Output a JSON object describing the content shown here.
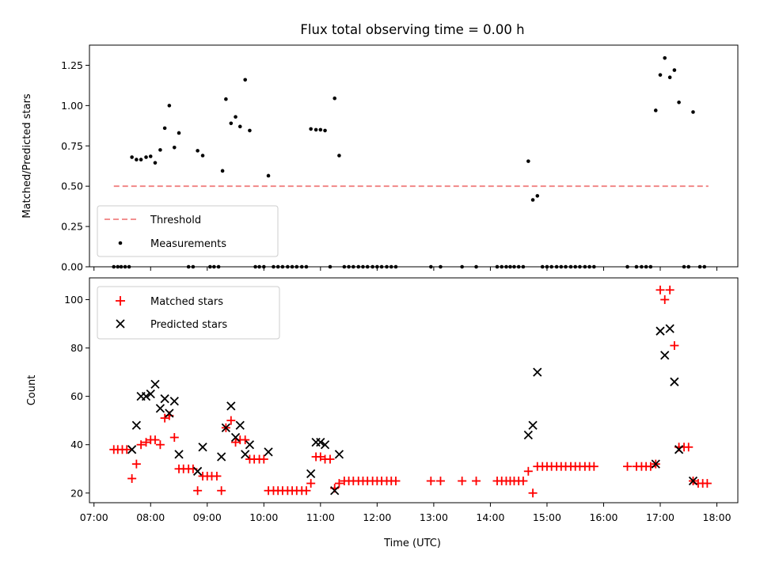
{
  "title": "Flux total observing time = 0.00 h",
  "top": {
    "ylabel": "Matched/Predicted stars",
    "ylim": [
      0,
      1.375
    ],
    "yticks": [
      "0.00",
      "0.25",
      "0.50",
      "0.75",
      "1.00",
      "1.25"
    ],
    "ytick_values": [
      0,
      0.25,
      0.5,
      0.75,
      1.0,
      1.25
    ],
    "legend": [
      "Threshold",
      "Measurements"
    ],
    "legend_position": "lower-left"
  },
  "bottom": {
    "ylabel": "Count",
    "ylim": [
      16,
      109
    ],
    "yticks": [
      "20",
      "40",
      "60",
      "80",
      "100"
    ],
    "ytick_values": [
      20,
      40,
      60,
      80,
      100
    ],
    "legend": [
      "Matched stars",
      "Predicted stars"
    ],
    "legend_position": "upper-left"
  },
  "xaxis": {
    "xlabel": "Time (UTC)",
    "xticks": [
      "07:00",
      "08:00",
      "09:00",
      "10:00",
      "11:00",
      "12:00",
      "13:00",
      "14:00",
      "15:00",
      "16:00",
      "17:00",
      "18:00"
    ],
    "xlim": [
      6.92,
      18.37
    ]
  },
  "chart_data": [
    {
      "type": "scatter",
      "title": "Flux total observing time = 0.00 h",
      "xlabel": "",
      "ylabel": "Matched/Predicted stars",
      "ylim": [
        0,
        1.375
      ],
      "threshold": {
        "name": "Threshold",
        "y": 0.5,
        "x": [
          7.35,
          17.85
        ],
        "color": "#f08080",
        "style": "dashed"
      },
      "series": [
        {
          "name": "Measurements",
          "color": "#000000",
          "points": [
            [
              7.35,
              0
            ],
            [
              7.42,
              0
            ],
            [
              7.48,
              0
            ],
            [
              7.55,
              0
            ],
            [
              7.62,
              0
            ],
            [
              7.67,
              0.68
            ],
            [
              7.75,
              0.665
            ],
            [
              7.83,
              0.665
            ],
            [
              7.92,
              0.68
            ],
            [
              8.0,
              0.685
            ],
            [
              8.08,
              0.645
            ],
            [
              8.17,
              0.725
            ],
            [
              8.25,
              0.86
            ],
            [
              8.33,
              1.0
            ],
            [
              8.42,
              0.74
            ],
            [
              8.5,
              0.83
            ],
            [
              8.67,
              0
            ],
            [
              8.75,
              0
            ],
            [
              8.83,
              0.72
            ],
            [
              8.92,
              0.69
            ],
            [
              9.05,
              0
            ],
            [
              9.12,
              0
            ],
            [
              9.2,
              0
            ],
            [
              9.27,
              0.595
            ],
            [
              9.33,
              1.04
            ],
            [
              9.42,
              0.89
            ],
            [
              9.5,
              0.93
            ],
            [
              9.58,
              0.87
            ],
            [
              9.67,
              1.16
            ],
            [
              9.75,
              0.845
            ],
            [
              9.85,
              0
            ],
            [
              9.92,
              0
            ],
            [
              10.0,
              0
            ],
            [
              10.08,
              0.565
            ],
            [
              10.17,
              0
            ],
            [
              10.25,
              0
            ],
            [
              10.33,
              0
            ],
            [
              10.42,
              0
            ],
            [
              10.5,
              0
            ],
            [
              10.58,
              0
            ],
            [
              10.67,
              0
            ],
            [
              10.75,
              0
            ],
            [
              10.83,
              0.855
            ],
            [
              10.92,
              0.85
            ],
            [
              11.0,
              0.85
            ],
            [
              11.08,
              0.845
            ],
            [
              11.17,
              0
            ],
            [
              11.25,
              1.045
            ],
            [
              11.33,
              0.69
            ],
            [
              11.42,
              0
            ],
            [
              11.5,
              0
            ],
            [
              11.58,
              0
            ],
            [
              11.67,
              0
            ],
            [
              11.75,
              0
            ],
            [
              11.83,
              0
            ],
            [
              11.92,
              0
            ],
            [
              12.0,
              0
            ],
            [
              12.08,
              0
            ],
            [
              12.17,
              0
            ],
            [
              12.25,
              0
            ],
            [
              12.33,
              0
            ],
            [
              12.95,
              0
            ],
            [
              13.12,
              0
            ],
            [
              13.5,
              0
            ],
            [
              13.75,
              0
            ],
            [
              14.12,
              0
            ],
            [
              14.2,
              0
            ],
            [
              14.28,
              0
            ],
            [
              14.35,
              0
            ],
            [
              14.42,
              0
            ],
            [
              14.5,
              0
            ],
            [
              14.58,
              0
            ],
            [
              14.67,
              0.655
            ],
            [
              14.75,
              0.415
            ],
            [
              14.83,
              0.44
            ],
            [
              14.92,
              0
            ],
            [
              15.0,
              0
            ],
            [
              15.08,
              0
            ],
            [
              15.17,
              0
            ],
            [
              15.25,
              0
            ],
            [
              15.33,
              0
            ],
            [
              15.42,
              0
            ],
            [
              15.5,
              0
            ],
            [
              15.58,
              0
            ],
            [
              15.67,
              0
            ],
            [
              15.75,
              0
            ],
            [
              15.83,
              0
            ],
            [
              16.42,
              0
            ],
            [
              16.58,
              0
            ],
            [
              16.67,
              0
            ],
            [
              16.75,
              0
            ],
            [
              16.83,
              0
            ],
            [
              16.92,
              0.97
            ],
            [
              17.0,
              1.19
            ],
            [
              17.08,
              1.295
            ],
            [
              17.17,
              1.175
            ],
            [
              17.25,
              1.22
            ],
            [
              17.33,
              1.02
            ],
            [
              17.42,
              0
            ],
            [
              17.5,
              0
            ],
            [
              17.58,
              0.96
            ],
            [
              17.7,
              0
            ],
            [
              17.78,
              0
            ]
          ]
        }
      ]
    },
    {
      "type": "scatter",
      "title": "",
      "xlabel": "Time (UTC)",
      "ylabel": "Count",
      "ylim": [
        16,
        109
      ],
      "series": [
        {
          "name": "Matched stars",
          "marker": "+",
          "color": "#ff0000",
          "points": [
            [
              7.35,
              38
            ],
            [
              7.42,
              38
            ],
            [
              7.5,
              38
            ],
            [
              7.58,
              38
            ],
            [
              7.67,
              26
            ],
            [
              7.75,
              32
            ],
            [
              7.83,
              40
            ],
            [
              7.92,
              41
            ],
            [
              8.0,
              42
            ],
            [
              8.08,
              42
            ],
            [
              8.17,
              40
            ],
            [
              8.25,
              51
            ],
            [
              8.33,
              52
            ],
            [
              8.42,
              43
            ],
            [
              8.5,
              30
            ],
            [
              8.58,
              30
            ],
            [
              8.67,
              30
            ],
            [
              8.75,
              30
            ],
            [
              8.83,
              21
            ],
            [
              8.92,
              27
            ],
            [
              9.0,
              27
            ],
            [
              9.08,
              27
            ],
            [
              9.17,
              27
            ],
            [
              9.25,
              21
            ],
            [
              9.33,
              47
            ],
            [
              9.42,
              50
            ],
            [
              9.5,
              41
            ],
            [
              9.58,
              42
            ],
            [
              9.67,
              42
            ],
            [
              9.75,
              34
            ],
            [
              9.83,
              34
            ],
            [
              9.92,
              34
            ],
            [
              10.0,
              34
            ],
            [
              10.08,
              21
            ],
            [
              10.17,
              21
            ],
            [
              10.25,
              21
            ],
            [
              10.33,
              21
            ],
            [
              10.42,
              21
            ],
            [
              10.5,
              21
            ],
            [
              10.58,
              21
            ],
            [
              10.67,
              21
            ],
            [
              10.75,
              21
            ],
            [
              10.83,
              24
            ],
            [
              10.92,
              35
            ],
            [
              11.0,
              35
            ],
            [
              11.08,
              34
            ],
            [
              11.17,
              34
            ],
            [
              11.25,
              22
            ],
            [
              11.33,
              24
            ],
            [
              11.42,
              25
            ],
            [
              11.5,
              25
            ],
            [
              11.58,
              25
            ],
            [
              11.67,
              25
            ],
            [
              11.75,
              25
            ],
            [
              11.83,
              25
            ],
            [
              11.92,
              25
            ],
            [
              12.0,
              25
            ],
            [
              12.08,
              25
            ],
            [
              12.17,
              25
            ],
            [
              12.25,
              25
            ],
            [
              12.33,
              25
            ],
            [
              12.95,
              25
            ],
            [
              13.12,
              25
            ],
            [
              13.5,
              25
            ],
            [
              13.75,
              25
            ],
            [
              14.12,
              25
            ],
            [
              14.2,
              25
            ],
            [
              14.28,
              25
            ],
            [
              14.35,
              25
            ],
            [
              14.42,
              25
            ],
            [
              14.5,
              25
            ],
            [
              14.58,
              25
            ],
            [
              14.67,
              29
            ],
            [
              14.75,
              20
            ],
            [
              14.83,
              31
            ],
            [
              14.92,
              31
            ],
            [
              15.0,
              31
            ],
            [
              15.08,
              31
            ],
            [
              15.17,
              31
            ],
            [
              15.25,
              31
            ],
            [
              15.33,
              31
            ],
            [
              15.42,
              31
            ],
            [
              15.5,
              31
            ],
            [
              15.58,
              31
            ],
            [
              15.67,
              31
            ],
            [
              15.75,
              31
            ],
            [
              15.83,
              31
            ],
            [
              16.42,
              31
            ],
            [
              16.58,
              31
            ],
            [
              16.67,
              31
            ],
            [
              16.75,
              31
            ],
            [
              16.83,
              31
            ],
            [
              16.92,
              32
            ],
            [
              17.0,
              104
            ],
            [
              17.08,
              100
            ],
            [
              17.17,
              104
            ],
            [
              17.25,
              81
            ],
            [
              17.33,
              39
            ],
            [
              17.42,
              39
            ],
            [
              17.5,
              39
            ],
            [
              17.58,
              25
            ],
            [
              17.67,
              24
            ],
            [
              17.75,
              24
            ],
            [
              17.83,
              24
            ]
          ]
        },
        {
          "name": "Predicted stars",
          "marker": "x",
          "color": "#000000",
          "points": [
            [
              7.67,
              38
            ],
            [
              7.75,
              48
            ],
            [
              7.83,
              60
            ],
            [
              7.92,
              60
            ],
            [
              8.0,
              61
            ],
            [
              8.08,
              65
            ],
            [
              8.17,
              55
            ],
            [
              8.25,
              59
            ],
            [
              8.33,
              53
            ],
            [
              8.42,
              58
            ],
            [
              8.5,
              36
            ],
            [
              8.83,
              29
            ],
            [
              8.92,
              39
            ],
            [
              9.25,
              35
            ],
            [
              9.33,
              47
            ],
            [
              9.42,
              56
            ],
            [
              9.5,
              43
            ],
            [
              9.58,
              48
            ],
            [
              9.67,
              36
            ],
            [
              9.75,
              40
            ],
            [
              10.08,
              37
            ],
            [
              10.83,
              28
            ],
            [
              10.92,
              41
            ],
            [
              11.0,
              41
            ],
            [
              11.08,
              40
            ],
            [
              11.25,
              21
            ],
            [
              11.33,
              36
            ],
            [
              14.67,
              44
            ],
            [
              14.75,
              48
            ],
            [
              14.83,
              70
            ],
            [
              16.92,
              32
            ],
            [
              17.0,
              87
            ],
            [
              17.08,
              77
            ],
            [
              17.17,
              88
            ],
            [
              17.25,
              66
            ],
            [
              17.33,
              38
            ],
            [
              17.58,
              25
            ]
          ]
        }
      ]
    }
  ]
}
